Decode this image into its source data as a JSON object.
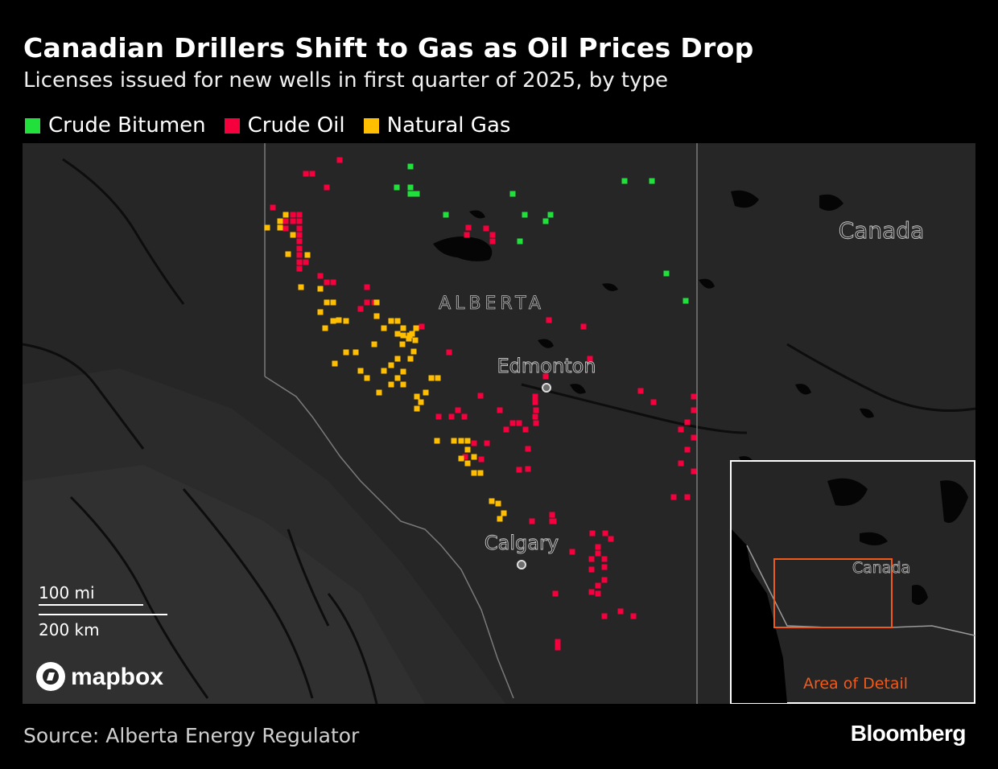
{
  "title": "Canadian Drillers Shift to Gas as Oil Prices Drop",
  "subtitle": "Licenses issued for new wells in first quarter of 2025, by type",
  "legend": [
    {
      "label": "Crude Bitumen",
      "color": "#22e03c"
    },
    {
      "label": "Crude Oil",
      "color": "#f5003d"
    },
    {
      "label": "Natural Gas",
      "color": "#ffbf00"
    }
  ],
  "map": {
    "province_label": "ALBERTA",
    "country_label": "Canada",
    "cities": [
      {
        "name": "Edmonton"
      },
      {
        "name": "Calgary"
      }
    ],
    "scale_bar": {
      "miles_label": "100 mi",
      "km_label": "200 km"
    },
    "attribution": "mapbox",
    "inset": {
      "country_label": "Canada",
      "caption": "Area of Detail",
      "accent_color": "#f05a1a"
    }
  },
  "source": "Source: Alberta Energy Regulator",
  "brand": "Bloomberg"
}
